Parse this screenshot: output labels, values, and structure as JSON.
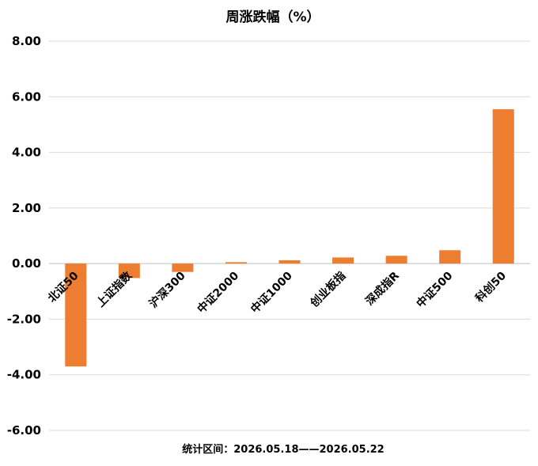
{
  "chart_data": {
    "type": "bar",
    "title": "周涨跌幅（%）",
    "categories": [
      "北证50",
      "上证指数",
      "沪深300",
      "中证2000",
      "中证1000",
      "创业板指",
      "深成指R",
      "中证500",
      "科创50"
    ],
    "values": [
      -3.7,
      -0.52,
      -0.3,
      0.05,
      0.12,
      0.22,
      0.28,
      0.48,
      5.55
    ],
    "ylim": [
      -6,
      8
    ],
    "yticks": [
      "8.00",
      "6.00",
      "4.00",
      "2.00",
      "0.00",
      "-2.00",
      "-4.00",
      "-6.00"
    ],
    "ytick_values": [
      8,
      6,
      4,
      2,
      0,
      -2,
      -4,
      -6
    ],
    "grid": true,
    "bar_color": "#ed7d31",
    "footer": "统计区间：2026.05.18——2026.05.22"
  }
}
